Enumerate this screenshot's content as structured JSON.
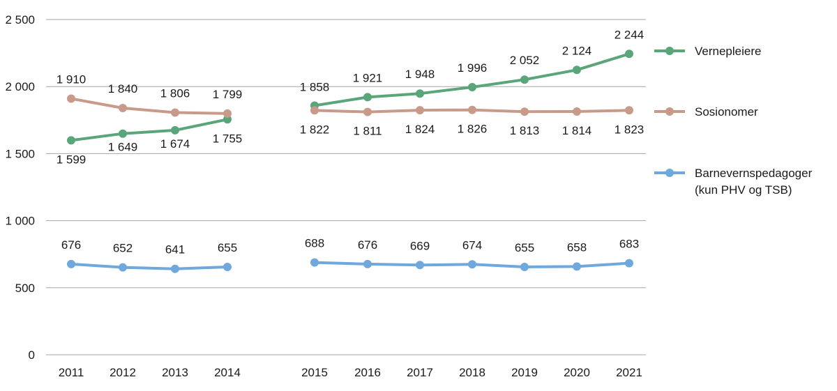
{
  "chart_data": {
    "type": "line",
    "x": [
      "2011",
      "2012",
      "2013",
      "2014",
      "2015",
      "2016",
      "2017",
      "2018",
      "2019",
      "2020",
      "2021"
    ],
    "y_ticks": [
      "0",
      "500",
      "1 000",
      "1 500",
      "2 000",
      "2 500"
    ],
    "ylim": [
      0,
      2500
    ],
    "grid": true,
    "legend_position": "right",
    "series": [
      {
        "name": "Vernepleiere",
        "color": "#5aa57a",
        "values": [
          1599,
          1649,
          1674,
          1755,
          1858,
          1921,
          1948,
          1996,
          2052,
          2124,
          2244
        ],
        "labels": [
          "1 599",
          "1 649",
          "1 674",
          "1 755",
          "1 858",
          "1 921",
          "1 948",
          "1 996",
          "2  052",
          "2  124",
          "2  244"
        ]
      },
      {
        "name": "Sosionomer",
        "color": "#c89a8a",
        "values": [
          1910,
          1840,
          1806,
          1799,
          1822,
          1811,
          1824,
          1826,
          1813,
          1814,
          1823
        ],
        "labels": [
          "1 910",
          "1 840",
          "1 806",
          "1 799",
          "1 822",
          "1 811",
          "1 824",
          "1 826",
          "1 813",
          "1 814",
          "1 823"
        ]
      },
      {
        "name": "Barnevernspedagoger",
        "name_line2": "(kun PHV og TSB)",
        "color": "#6fa8dc",
        "values": [
          676,
          652,
          641,
          655,
          688,
          676,
          669,
          674,
          655,
          658,
          683
        ],
        "labels": [
          "676",
          "652",
          "641",
          "655",
          "688",
          "676",
          "669",
          "674",
          "655",
          "658",
          "683"
        ]
      }
    ]
  }
}
